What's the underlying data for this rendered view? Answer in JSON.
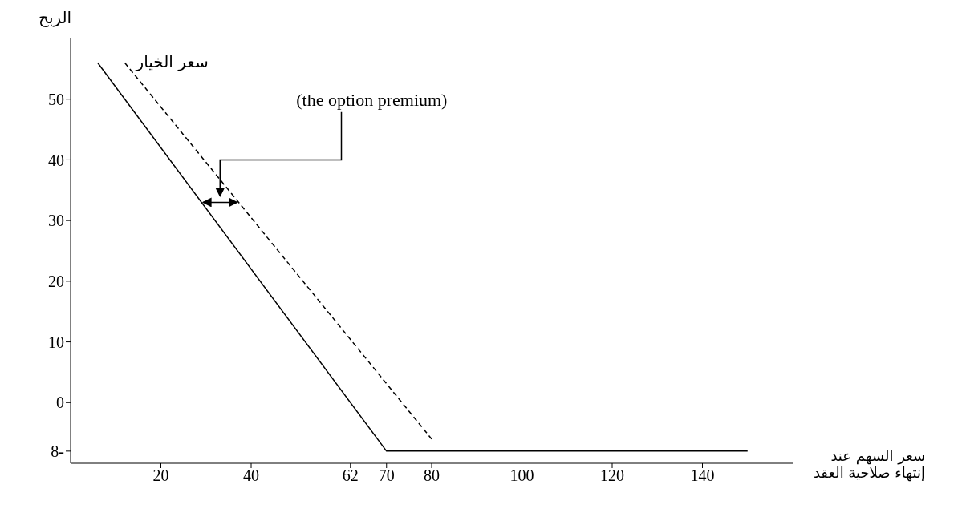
{
  "chart_data": {
    "type": "line",
    "xlabel": "سعر السهم عند إنتهاء صلاحية العقد",
    "ylabel": "الربح",
    "annotations": [
      "(the option premium)"
    ],
    "series": [
      {
        "color": "#000000",
        "line_style": "solid",
        "x": [
          6,
          70,
          150
        ],
        "values": [
          56,
          -8,
          -8
        ]
      },
      {
        "name": "سعر الخيار",
        "color": "#000000",
        "line_style": "dashed",
        "x": [
          12,
          80
        ],
        "values": [
          56,
          -6
        ]
      }
    ],
    "xlim": [
      0,
      160
    ],
    "xticks": [
      20,
      40,
      62,
      70,
      80,
      100,
      120,
      140
    ],
    "ylim": [
      -10,
      60
    ],
    "yticks": [
      {
        "value": -8,
        "label": "8-"
      },
      0,
      10,
      20,
      30,
      40,
      50
    ],
    "grid": false,
    "legend": false,
    "marker": "none"
  }
}
